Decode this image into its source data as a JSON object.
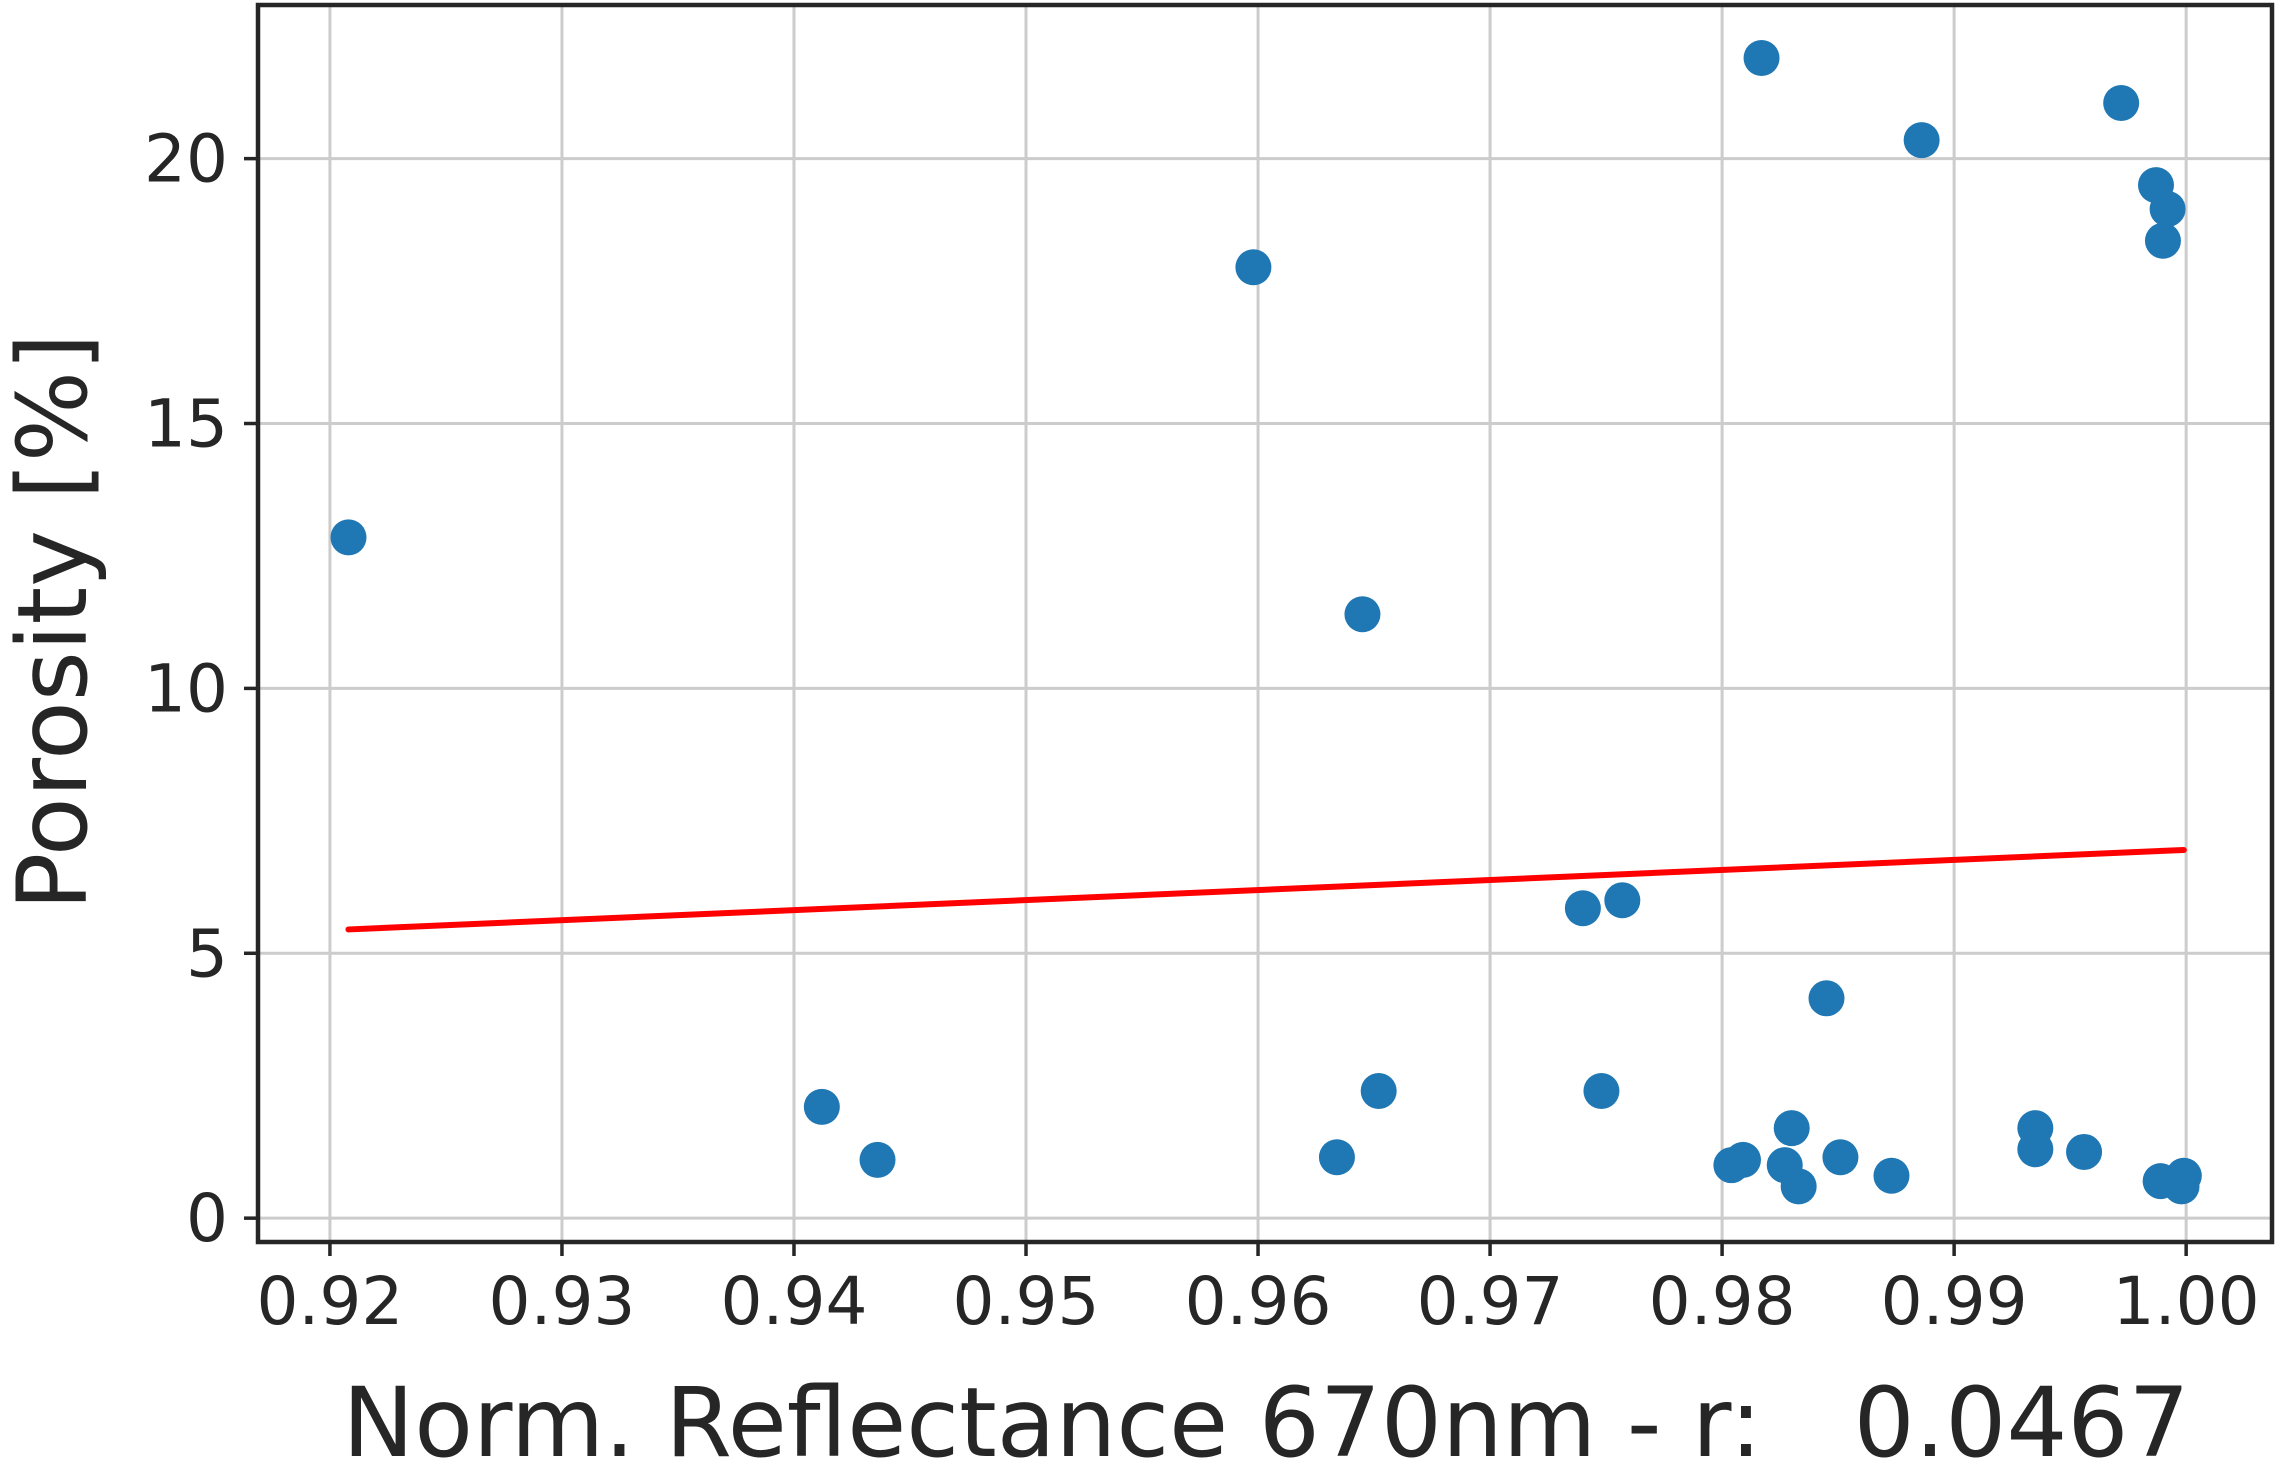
{
  "chart_data": {
    "type": "scatter",
    "xlabel": "Norm. Reflectance 670nm - r:   0.0467",
    "ylabel": "Porosity [%]",
    "xlim": [
      0.9169,
      1.0037
    ],
    "ylim": [
      -0.45,
      22.9
    ],
    "xticks": [
      0.92,
      0.93,
      0.94,
      0.95,
      0.96,
      0.97,
      0.98,
      0.99,
      1.0
    ],
    "xtick_labels": [
      "0.92",
      "0.93",
      "0.94",
      "0.95",
      "0.96",
      "0.97",
      "0.98",
      "0.99",
      "1.00"
    ],
    "yticks": [
      0,
      5,
      10,
      15,
      20
    ],
    "ytick_labels": [
      "0",
      "5",
      "10",
      "15",
      "20"
    ],
    "grid": true,
    "point_color": "#1f77b4",
    "line_color": "#ff0000",
    "points": [
      {
        "x": 0.9208,
        "y": 12.85
      },
      {
        "x": 0.9412,
        "y": 2.1
      },
      {
        "x": 0.9436,
        "y": 1.1
      },
      {
        "x": 0.9598,
        "y": 17.95
      },
      {
        "x": 0.9634,
        "y": 1.15
      },
      {
        "x": 0.9645,
        "y": 11.4
      },
      {
        "x": 0.9652,
        "y": 2.4
      },
      {
        "x": 0.974,
        "y": 5.85
      },
      {
        "x": 0.9748,
        "y": 2.4
      },
      {
        "x": 0.9757,
        "y": 6.0
      },
      {
        "x": 0.9804,
        "y": 1.0
      },
      {
        "x": 0.9809,
        "y": 1.1
      },
      {
        "x": 0.9817,
        "y": 21.9
      },
      {
        "x": 0.9827,
        "y": 1.0
      },
      {
        "x": 0.983,
        "y": 1.7
      },
      {
        "x": 0.9833,
        "y": 0.6
      },
      {
        "x": 0.9845,
        "y": 4.15
      },
      {
        "x": 0.9851,
        "y": 1.15
      },
      {
        "x": 0.9873,
        "y": 0.8
      },
      {
        "x": 0.9886,
        "y": 20.35
      },
      {
        "x": 0.9935,
        "y": 1.7
      },
      {
        "x": 0.9935,
        "y": 1.3
      },
      {
        "x": 0.9956,
        "y": 1.25
      },
      {
        "x": 0.9972,
        "y": 21.05
      },
      {
        "x": 0.9987,
        "y": 19.5
      },
      {
        "x": 0.9989,
        "y": 0.7
      },
      {
        "x": 0.999,
        "y": 18.45
      },
      {
        "x": 0.9992,
        "y": 19.05
      },
      {
        "x": 0.9998,
        "y": 0.6
      },
      {
        "x": 0.9999,
        "y": 0.8
      }
    ],
    "fit_line": {
      "x": [
        0.9208,
        0.9999
      ],
      "y": [
        5.45,
        6.95
      ]
    }
  }
}
